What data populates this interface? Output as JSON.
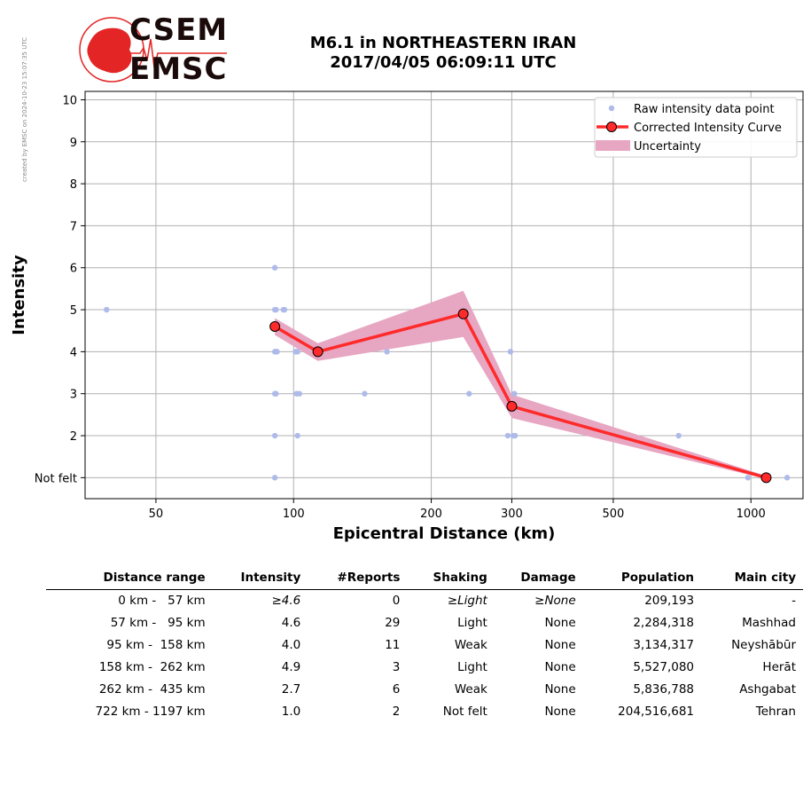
{
  "credit": "created by EMSC on 2024-10-23 15:07:35 UTC",
  "logo": {
    "line1": "CSEM",
    "line2": "EMSC"
  },
  "title": {
    "line1": "M6.1 in NORTHEASTERN IRAN",
    "line2": "2017/04/05 06:09:11 UTC"
  },
  "colors": {
    "raw_points": "#aebbea",
    "curve": "#ff2a2a",
    "uncertainty": "#e7a6c2",
    "logo": "#e32625"
  },
  "chart_data": {
    "type": "scatter",
    "xlabel": "Epicentral Distance (km)",
    "ylabel": "Intensity",
    "x_scale": "log",
    "xlim": [
      35,
      1300
    ],
    "ylim": [
      0.5,
      10.2
    ],
    "x_ticks": [
      50,
      100,
      200,
      300,
      500,
      1000
    ],
    "y_ticks": [
      {
        "value": 1,
        "label": "Not felt"
      },
      {
        "value": 2,
        "label": "2"
      },
      {
        "value": 3,
        "label": "3"
      },
      {
        "value": 4,
        "label": "4"
      },
      {
        "value": 5,
        "label": "5"
      },
      {
        "value": 6,
        "label": "6"
      },
      {
        "value": 7,
        "label": "7"
      },
      {
        "value": 8,
        "label": "8"
      },
      {
        "value": 9,
        "label": "9"
      },
      {
        "value": 10,
        "label": "10"
      }
    ],
    "grid": true,
    "legend_position": "top-right",
    "series": [
      {
        "name": "Raw intensity data point",
        "style": "points",
        "points": [
          [
            39,
            5
          ],
          [
            91,
            6
          ],
          [
            91,
            5
          ],
          [
            91.5,
            5
          ],
          [
            95,
            5
          ],
          [
            95.5,
            5
          ],
          [
            91,
            4
          ],
          [
            91.5,
            4
          ],
          [
            92,
            4
          ],
          [
            101,
            4
          ],
          [
            102,
            4
          ],
          [
            160,
            4
          ],
          [
            298,
            4
          ],
          [
            91,
            3
          ],
          [
            91.5,
            3
          ],
          [
            101.5,
            3
          ],
          [
            103,
            3
          ],
          [
            143,
            3
          ],
          [
            242,
            3
          ],
          [
            304,
            3
          ],
          [
            91,
            2
          ],
          [
            102,
            2
          ],
          [
            294,
            2
          ],
          [
            302,
            2
          ],
          [
            305,
            2
          ],
          [
            695,
            2
          ],
          [
            91,
            1
          ],
          [
            985,
            1
          ],
          [
            1200,
            1
          ]
        ]
      },
      {
        "name": "Corrected Intensity Curve",
        "style": "line-markers",
        "points": [
          [
            91,
            4.6
          ],
          [
            113,
            4.0
          ],
          [
            235,
            4.9
          ],
          [
            300,
            2.7
          ],
          [
            1080,
            1.0
          ]
        ]
      },
      {
        "name": "Uncertainty",
        "style": "band",
        "upper": [
          [
            91,
            4.8
          ],
          [
            113,
            4.2
          ],
          [
            235,
            5.45
          ],
          [
            300,
            2.98
          ],
          [
            1080,
            1.04
          ]
        ],
        "lower": [
          [
            91,
            4.4
          ],
          [
            113,
            3.78
          ],
          [
            235,
            4.35
          ],
          [
            300,
            2.42
          ],
          [
            1080,
            0.97
          ]
        ]
      }
    ]
  },
  "table": {
    "headers": [
      "Distance range",
      "Intensity",
      "#Reports",
      "Shaking",
      "Damage",
      "Population",
      "Main city"
    ],
    "rows": [
      [
        "0 km -   57 km",
        "≥4.6",
        "0",
        "≥Light",
        "≥None",
        "209,193",
        "-"
      ],
      [
        "57 km -   95 km",
        "4.6",
        "29",
        "Light",
        "None",
        "2,284,318",
        "Mashhad"
      ],
      [
        "95 km -  158 km",
        "4.0",
        "11",
        "Weak",
        "None",
        "3,134,317",
        "Neyshābūr"
      ],
      [
        "158 km -  262 km",
        "4.9",
        "3",
        "Light",
        "None",
        "5,527,080",
        "Herāt"
      ],
      [
        "262 km -  435 km",
        "2.7",
        "6",
        "Weak",
        "None",
        "5,836,788",
        "Ashgabat"
      ],
      [
        "722 km - 1197 km",
        "1.0",
        "2",
        "Not felt",
        "None",
        "204,516,681",
        "Tehran"
      ]
    ]
  }
}
